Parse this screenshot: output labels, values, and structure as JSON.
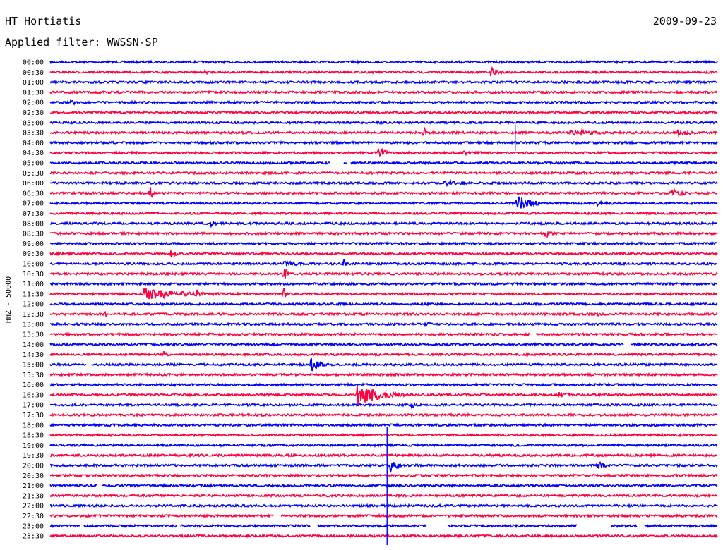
{
  "header": {
    "station": "HT Hortiatis",
    "date": "2009-09-23",
    "filter": "Applied filter: WWSSN-SP"
  },
  "chart_data": {
    "type": "line",
    "title": "HT Hortiatis",
    "subtitle": "Applied filter: WWSSN-SP",
    "ylabel": "HHZ - 50000",
    "xlabel": "",
    "grid": false,
    "legend": "none",
    "row_labels": [
      "00:00",
      "00:30",
      "01:00",
      "01:30",
      "02:00",
      "02:30",
      "03:00",
      "03:30",
      "04:00",
      "04:30",
      "05:00",
      "05:30",
      "06:00",
      "06:30",
      "07:00",
      "07:30",
      "08:00",
      "08:30",
      "09:00",
      "09:30",
      "10:00",
      "10:30",
      "11:00",
      "11:30",
      "12:00",
      "12:30",
      "13:00",
      "13:30",
      "14:00",
      "14:30",
      "15:00",
      "15:30",
      "16:00",
      "16:30",
      "17:00",
      "17:30",
      "18:00",
      "18:30",
      "19:00",
      "19:30",
      "20:00",
      "20:30",
      "21:00",
      "21:30",
      "22:00",
      "22:30",
      "23:00",
      "23:30"
    ],
    "row_colors": [
      "#0000ff",
      "#ff0040"
    ],
    "x_unit": "fraction of 30-minute row",
    "noise_amplitude": 1.5,
    "events": [
      {
        "row": 1,
        "x": 0.66,
        "amp": 9,
        "dur": 0.012
      },
      {
        "row": 1,
        "x": 0.23,
        "amp": 3,
        "dur": 0.02
      },
      {
        "row": 1,
        "x": 0.98,
        "amp": 4,
        "dur": 0.012
      },
      {
        "row": 4,
        "x": 0.03,
        "amp": 6,
        "dur": 0.008
      },
      {
        "row": 7,
        "x": 0.56,
        "amp": 12,
        "dur": 0.002
      },
      {
        "row": 7,
        "x": 0.78,
        "amp": 4,
        "dur": 0.06
      },
      {
        "row": 7,
        "x": 0.94,
        "amp": 6,
        "dur": 0.02
      },
      {
        "row": 9,
        "x": 0.49,
        "amp": 9,
        "dur": 0.012
      },
      {
        "row": 9,
        "x": 0.62,
        "amp": 4,
        "dur": 0.01
      },
      {
        "row": 12,
        "x": 0.59,
        "amp": 4,
        "dur": 0.05
      },
      {
        "row": 13,
        "x": 0.15,
        "amp": 13,
        "dur": 0.003
      },
      {
        "row": 13,
        "x": 0.93,
        "amp": 7,
        "dur": 0.02
      },
      {
        "row": 14,
        "x": 0.7,
        "amp": 14,
        "dur": 0.02
      },
      {
        "row": 14,
        "x": 0.82,
        "amp": 4,
        "dur": 0.015
      },
      {
        "row": 16,
        "x": 0.24,
        "amp": 5,
        "dur": 0.01
      },
      {
        "row": 17,
        "x": 0.74,
        "amp": 8,
        "dur": 0.01
      },
      {
        "row": 19,
        "x": 0.18,
        "amp": 7,
        "dur": 0.01
      },
      {
        "row": 20,
        "x": 0.44,
        "amp": 9,
        "dur": 0.004
      },
      {
        "row": 20,
        "x": 0.35,
        "amp": 4,
        "dur": 0.04
      },
      {
        "row": 21,
        "x": 0.35,
        "amp": 14,
        "dur": 0.004
      },
      {
        "row": 23,
        "x": 0.14,
        "amp": 9,
        "dur": 0.07
      },
      {
        "row": 23,
        "x": 0.22,
        "amp": 7,
        "dur": 0.003
      },
      {
        "row": 23,
        "x": 0.35,
        "amp": 12,
        "dur": 0.003
      },
      {
        "row": 25,
        "x": 0.08,
        "amp": 4,
        "dur": 0.01
      },
      {
        "row": 25,
        "x": 0.82,
        "amp": 4,
        "dur": 0.005
      },
      {
        "row": 26,
        "x": 0.56,
        "amp": 4,
        "dur": 0.02
      },
      {
        "row": 29,
        "x": 0.17,
        "amp": 5,
        "dur": 0.008
      },
      {
        "row": 30,
        "x": 0.39,
        "amp": 12,
        "dur": 0.012
      },
      {
        "row": 33,
        "x": 0.46,
        "amp": 16,
        "dur": 0.035
      },
      {
        "row": 33,
        "x": 0.76,
        "amp": 5,
        "dur": 0.02
      },
      {
        "row": 34,
        "x": 0.54,
        "amp": 6,
        "dur": 0.008
      },
      {
        "row": 37,
        "x": 0.09,
        "amp": 4,
        "dur": 0.006
      },
      {
        "row": 40,
        "x": 0.51,
        "amp": 11,
        "dur": 0.01
      },
      {
        "row": 40,
        "x": 0.82,
        "amp": 8,
        "dur": 0.01
      }
    ],
    "spikes": [
      {
        "from_row": 6.2,
        "to_row": 8.8,
        "x": 0.697
      },
      {
        "from_row": 36.2,
        "to_row": 47.9,
        "x": 0.505
      }
    ],
    "gaps": [
      {
        "row": 10,
        "x0": 0.42,
        "x1": 0.44
      },
      {
        "row": 10,
        "x0": 0.445,
        "x1": 0.45
      },
      {
        "row": 27,
        "x0": 0.72,
        "x1": 0.728
      },
      {
        "row": 28,
        "x0": 0.86,
        "x1": 0.87
      },
      {
        "row": 30,
        "x0": 0.055,
        "x1": 0.062
      },
      {
        "row": 42,
        "x0": 0.07,
        "x1": 0.078
      },
      {
        "row": 45,
        "x0": 0.335,
        "x1": 0.345
      },
      {
        "row": 46,
        "x0": 0.045,
        "x1": 0.05
      },
      {
        "row": 46,
        "x0": 0.19,
        "x1": 0.195
      },
      {
        "row": 46,
        "x0": 0.39,
        "x1": 0.4
      },
      {
        "row": 46,
        "x0": 0.565,
        "x1": 0.595
      },
      {
        "row": 46,
        "x0": 0.79,
        "x1": 0.84
      },
      {
        "row": 46,
        "x0": 0.88,
        "x1": 0.89
      }
    ]
  }
}
